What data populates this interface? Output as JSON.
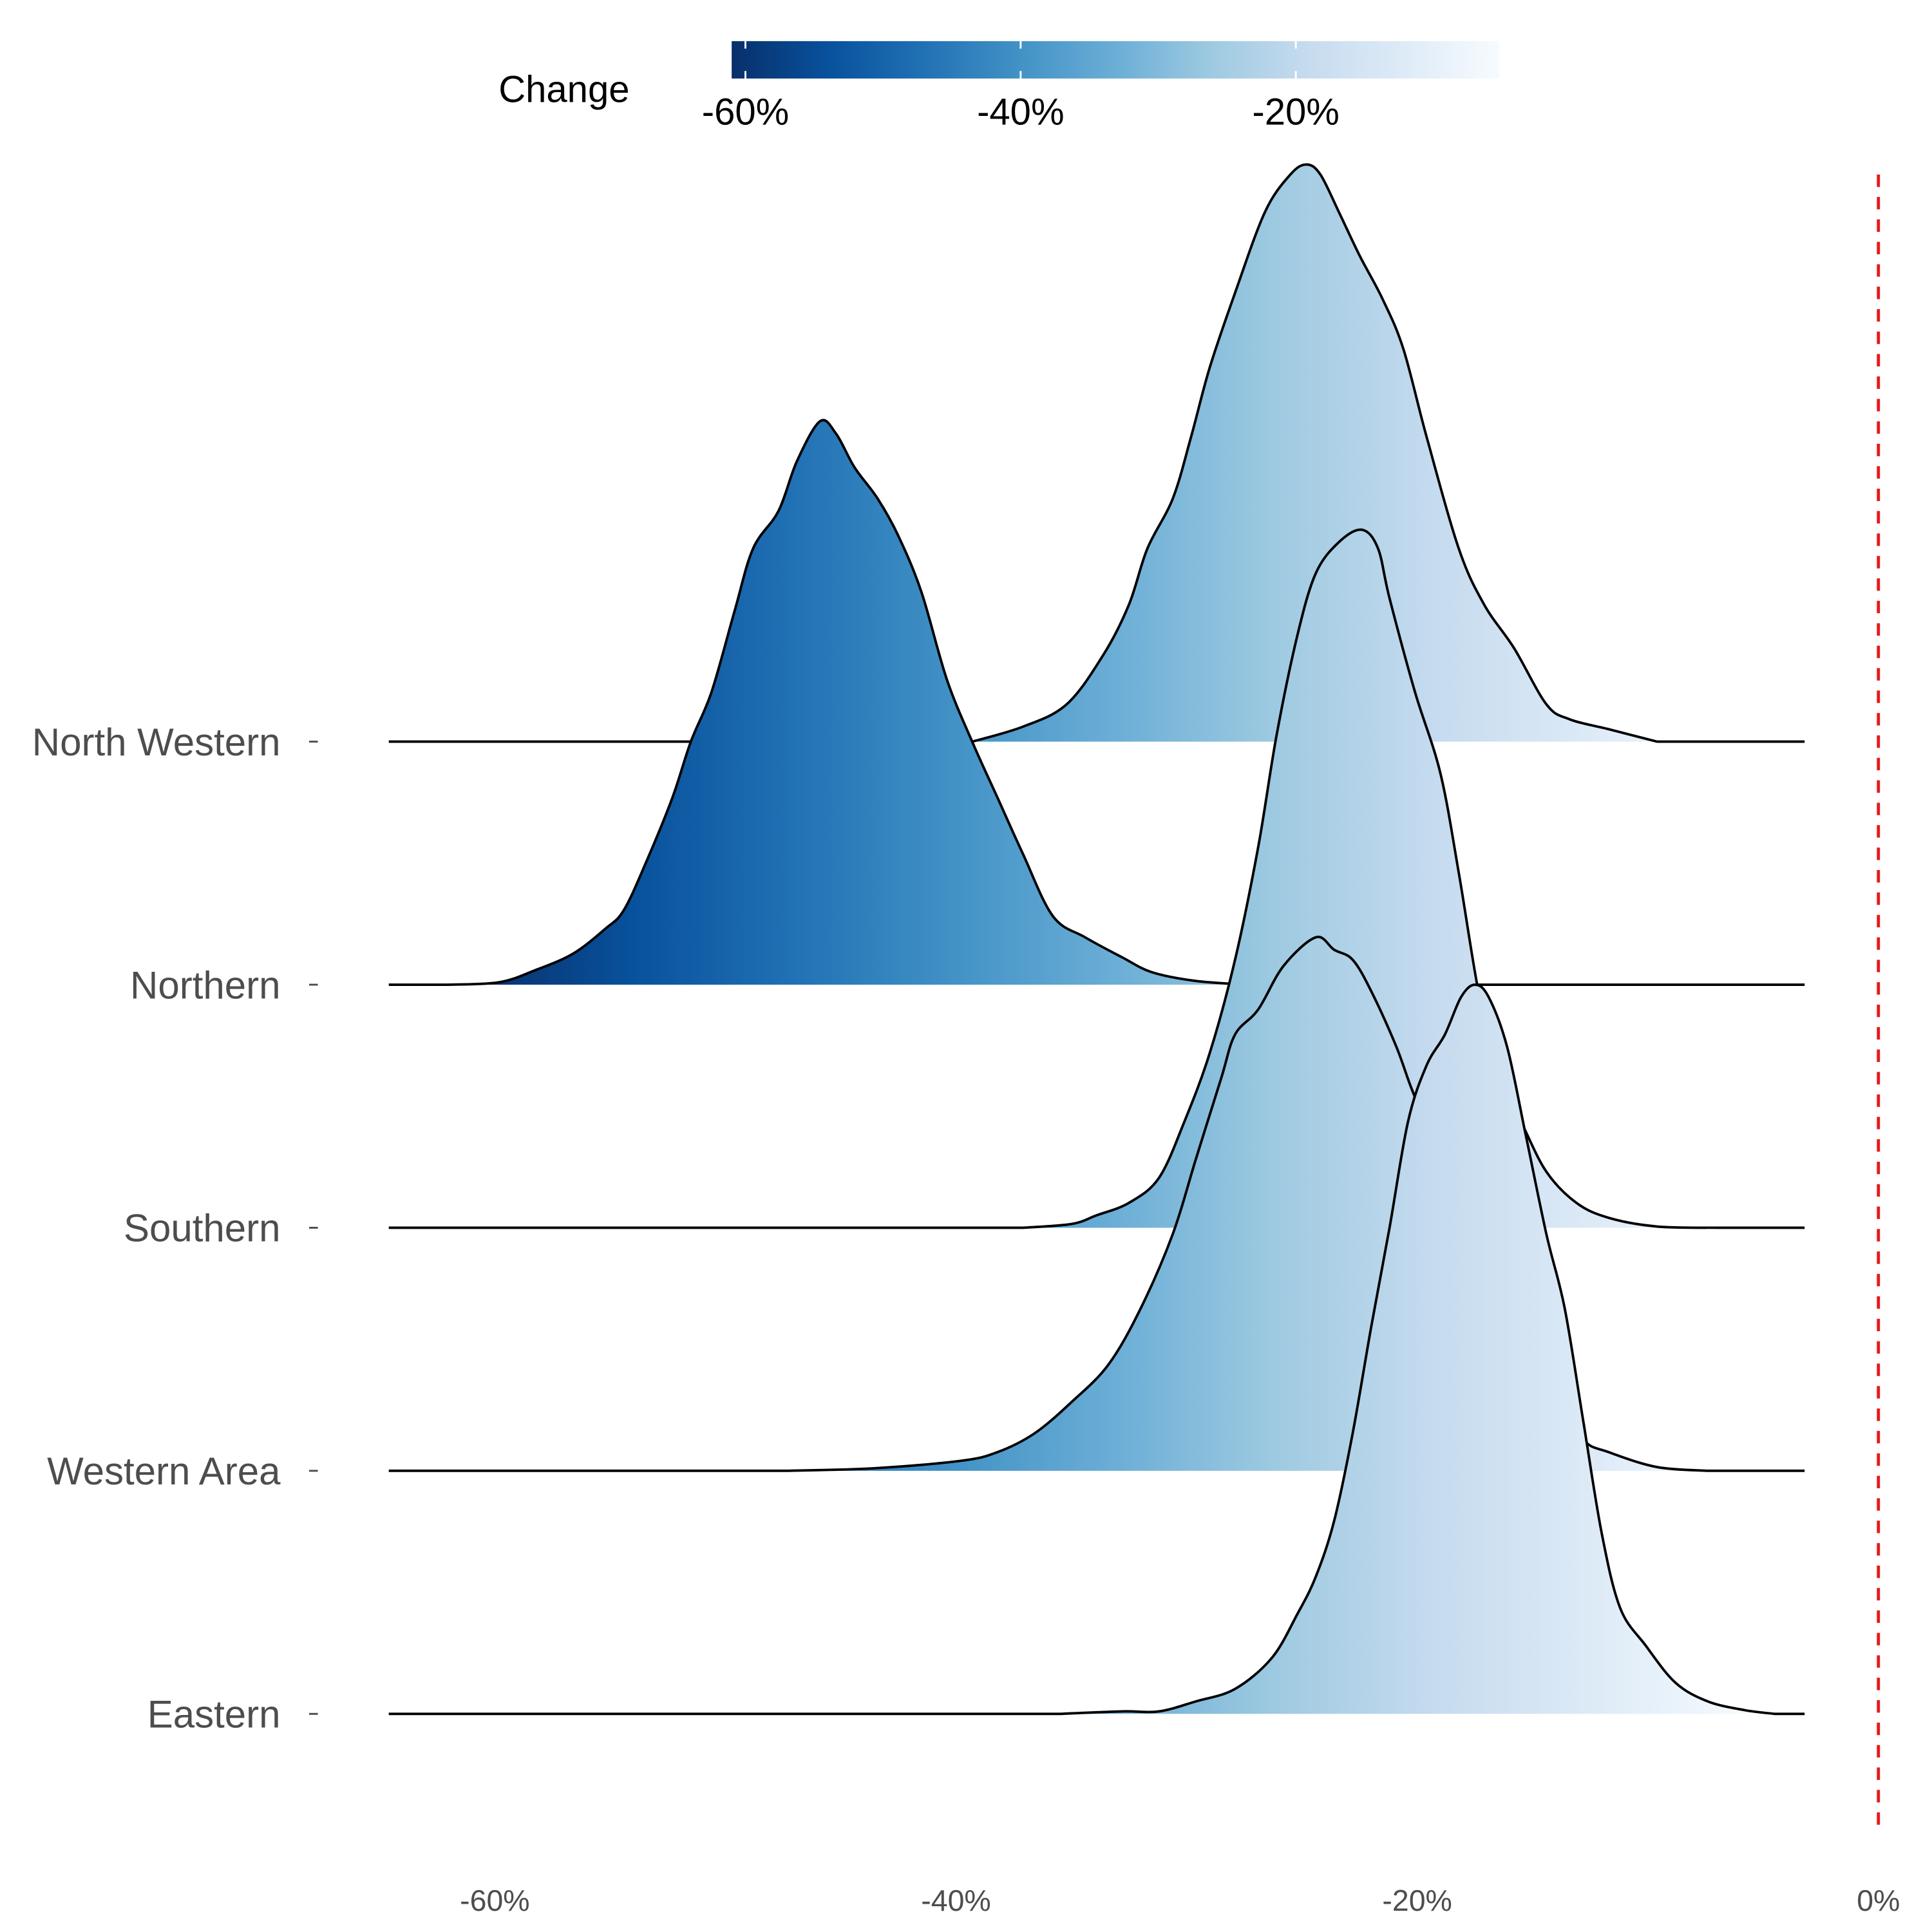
{
  "chart_data": {
    "type": "ridgeline",
    "title": "",
    "xlabel": "",
    "ylabel": "",
    "xlim": [
      -64.6,
      -3.2
    ],
    "x_ticks": [
      {
        "value": -60,
        "label": "-60%"
      },
      {
        "value": -40,
        "label": "-40%"
      },
      {
        "value": -20,
        "label": "-20%"
      },
      {
        "value": 0,
        "label": "0%"
      }
    ],
    "reference_line": {
      "value": 0,
      "color": "#e41a1c",
      "style": "dashed"
    },
    "legend": {
      "title": "Change",
      "placement": "top",
      "range": [
        -61,
        -5.2
      ],
      "ticks": [
        {
          "value": -60,
          "label": "-60%"
        },
        {
          "value": -40,
          "label": "-40%"
        },
        {
          "value": -20,
          "label": "-20%"
        }
      ],
      "colors": [
        "#08306b",
        "#08519c",
        "#2171b5",
        "#4292c6",
        "#6baed6",
        "#9ecae1",
        "#c6dbef",
        "#deebf7",
        "#f7fbff"
      ]
    },
    "series": [
      {
        "name": "North Western",
        "points": [
          [
            -39.3,
            0
          ],
          [
            -37.1,
            0.12
          ],
          [
            -35.2,
            0.3
          ],
          [
            -33.6,
            0.7
          ],
          [
            -32.5,
            1.1
          ],
          [
            -31.7,
            1.55
          ],
          [
            -30.6,
            1.95
          ],
          [
            -29.8,
            2.45
          ],
          [
            -29.0,
            3.0
          ],
          [
            -27.9,
            3.6
          ],
          [
            -26.6,
            4.25
          ],
          [
            -25.5,
            4.55
          ],
          [
            -24.8,
            4.63
          ],
          [
            -24.2,
            4.55
          ],
          [
            -23.4,
            4.25
          ],
          [
            -22.5,
            3.9
          ],
          [
            -21.5,
            3.55
          ],
          [
            -20.6,
            3.15
          ],
          [
            -19.6,
            2.45
          ],
          [
            -18.2,
            1.55
          ],
          [
            -17.1,
            1.1
          ],
          [
            -15.8,
            0.75
          ],
          [
            -14.4,
            0.3
          ],
          [
            -13.4,
            0.18
          ],
          [
            -11.7,
            0.1
          ],
          [
            -9.6,
            0
          ]
        ]
      },
      {
        "name": "Northern",
        "points": [
          [
            -62,
            0
          ],
          [
            -59.8,
            0.02
          ],
          [
            -58.2,
            0.12
          ],
          [
            -56.6,
            0.25
          ],
          [
            -55.2,
            0.45
          ],
          [
            -54.4,
            0.6
          ],
          [
            -53.4,
            1.0
          ],
          [
            -52.3,
            1.5
          ],
          [
            -51.5,
            1.95
          ],
          [
            -50.6,
            2.35
          ],
          [
            -49.6,
            3.0
          ],
          [
            -48.8,
            3.5
          ],
          [
            -47.7,
            3.8
          ],
          [
            -46.9,
            4.2
          ],
          [
            -45.9,
            4.52
          ],
          [
            -45.2,
            4.42
          ],
          [
            -44.4,
            4.15
          ],
          [
            -43.4,
            3.9
          ],
          [
            -42.5,
            3.6
          ],
          [
            -41.5,
            3.15
          ],
          [
            -40.4,
            2.45
          ],
          [
            -39.3,
            1.95
          ],
          [
            -38.2,
            1.5
          ],
          [
            -37.1,
            1.05
          ],
          [
            -35.8,
            0.55
          ],
          [
            -34.4,
            0.38
          ],
          [
            -32.8,
            0.22
          ],
          [
            -31.5,
            0.1
          ],
          [
            -29.6,
            0.03
          ],
          [
            -27.4,
            0
          ]
        ]
      },
      {
        "name": "Southern",
        "points": [
          [
            -37.1,
            0
          ],
          [
            -35.0,
            0.03
          ],
          [
            -33.9,
            0.1
          ],
          [
            -32.5,
            0.2
          ],
          [
            -31.2,
            0.4
          ],
          [
            -30.1,
            0.85
          ],
          [
            -29.0,
            1.4
          ],
          [
            -27.9,
            2.15
          ],
          [
            -26.9,
            3.05
          ],
          [
            -26.1,
            3.95
          ],
          [
            -25.2,
            4.75
          ],
          [
            -24.4,
            5.25
          ],
          [
            -23.4,
            5.5
          ],
          [
            -22.4,
            5.6
          ],
          [
            -21.7,
            5.45
          ],
          [
            -21.2,
            5.05
          ],
          [
            -20.1,
            4.3
          ],
          [
            -19.0,
            3.65
          ],
          [
            -18.2,
            2.85
          ],
          [
            -17.4,
            1.95
          ],
          [
            -16.6,
            1.25
          ],
          [
            -15.5,
            0.85
          ],
          [
            -14.4,
            0.45
          ],
          [
            -13.1,
            0.2
          ],
          [
            -11.7,
            0.08
          ],
          [
            -9.6,
            0.01
          ],
          [
            -6.9,
            0
          ]
        ]
      },
      {
        "name": "Western Area",
        "points": [
          [
            -47.4,
            0
          ],
          [
            -43.6,
            0.02
          ],
          [
            -39.8,
            0.08
          ],
          [
            -38.2,
            0.15
          ],
          [
            -36.6,
            0.3
          ],
          [
            -35.0,
            0.55
          ],
          [
            -33.4,
            0.85
          ],
          [
            -32.0,
            1.3
          ],
          [
            -30.6,
            1.9
          ],
          [
            -29.6,
            2.5
          ],
          [
            -28.5,
            3.15
          ],
          [
            -27.9,
            3.5
          ],
          [
            -26.9,
            3.7
          ],
          [
            -25.8,
            4.05
          ],
          [
            -24.4,
            4.28
          ],
          [
            -23.6,
            4.18
          ],
          [
            -22.8,
            4.1
          ],
          [
            -22.0,
            3.85
          ],
          [
            -20.9,
            3.4
          ],
          [
            -20.1,
            3.0
          ],
          [
            -18.8,
            2.5
          ],
          [
            -17.1,
            1.9
          ],
          [
            -15.5,
            1.3
          ],
          [
            -13.9,
            0.6
          ],
          [
            -12.8,
            0.25
          ],
          [
            -11.7,
            0.15
          ],
          [
            -9.6,
            0.03
          ],
          [
            -7.4,
            0
          ]
        ]
      },
      {
        "name": "Eastern",
        "points": [
          [
            -35.5,
            0
          ],
          [
            -32.8,
            0.02
          ],
          [
            -31.2,
            0.02
          ],
          [
            -29.6,
            0.1
          ],
          [
            -27.9,
            0.2
          ],
          [
            -26.3,
            0.45
          ],
          [
            -25.2,
            0.8
          ],
          [
            -24.4,
            1.1
          ],
          [
            -23.6,
            1.55
          ],
          [
            -22.8,
            2.25
          ],
          [
            -22.0,
            3.1
          ],
          [
            -21.2,
            3.9
          ],
          [
            -20.4,
            4.75
          ],
          [
            -19.6,
            5.2
          ],
          [
            -18.8,
            5.45
          ],
          [
            -18.1,
            5.75
          ],
          [
            -17.5,
            5.85
          ],
          [
            -16.9,
            5.75
          ],
          [
            -16.1,
            5.35
          ],
          [
            -15.3,
            4.65
          ],
          [
            -14.4,
            3.85
          ],
          [
            -13.6,
            3.25
          ],
          [
            -12.8,
            2.35
          ],
          [
            -12.0,
            1.45
          ],
          [
            -11.2,
            0.85
          ],
          [
            -10.1,
            0.55
          ],
          [
            -8.8,
            0.25
          ],
          [
            -7.4,
            0.1
          ],
          [
            -5.8,
            0.03
          ],
          [
            -4.5,
            0
          ]
        ]
      }
    ]
  }
}
